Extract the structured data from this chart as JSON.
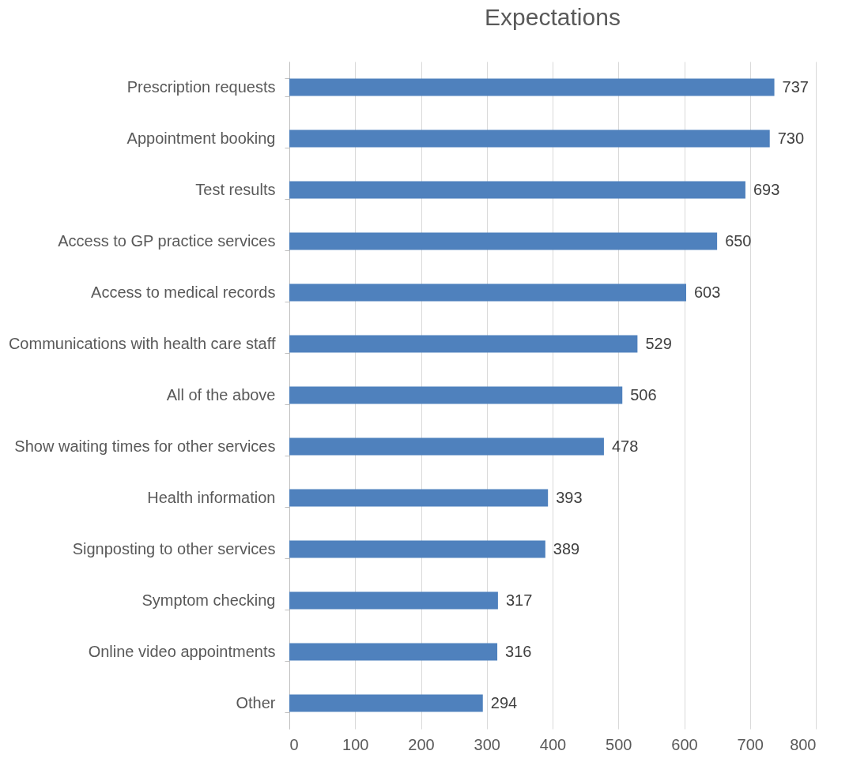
{
  "chart_data": {
    "type": "bar",
    "orientation": "horizontal",
    "title": "Expectations",
    "categories": [
      "Prescription requests",
      "Appointment booking",
      "Test results",
      "Access to GP practice services",
      "Access to medical records",
      "Communications with health care staff",
      "All of the above",
      "Show waiting times for other services",
      "Health information",
      "Signposting to other services",
      "Symptom checking",
      "Online video appointments",
      "Other"
    ],
    "values": [
      737,
      730,
      693,
      650,
      603,
      529,
      506,
      478,
      393,
      389,
      317,
      316,
      294
    ],
    "color": "#4f81bd",
    "xlim": [
      0,
      800
    ],
    "xticks": [
      0,
      100,
      200,
      300,
      400,
      500,
      600,
      700,
      800
    ],
    "grid": "x",
    "data_labels": true
  }
}
